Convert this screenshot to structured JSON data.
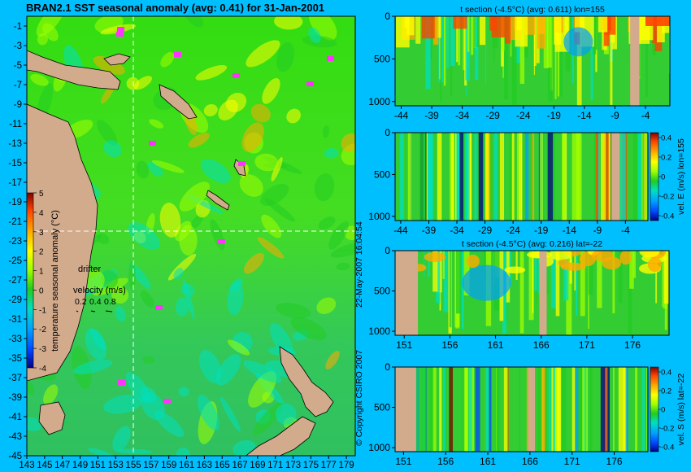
{
  "figure": {
    "title": "BRAN2.1 SST seasonal anomaly (avg: 0.41) for 31-Jan-2001",
    "copyright": "© Copyright CSIRO 2007",
    "timestamp": "22-May-2007 16:04:54"
  },
  "colors": {
    "background": "#00bfff",
    "land": "#d2aa8c",
    "drifter": "#ff33ff",
    "colormap": [
      "#000080",
      "#0044ff",
      "#00a0ff",
      "#00e0c0",
      "#22cc22",
      "#a0ff00",
      "#ffff00",
      "#ffaa00",
      "#ff4400",
      "#800000"
    ]
  },
  "chart_data": [
    {
      "id": "map",
      "type": "heatmap",
      "title": "BRAN2.1 SST seasonal anomaly (avg: 0.41) for 31-Jan-2001",
      "x_ticks": [
        "143",
        "145",
        "147",
        "149",
        "151",
        "153",
        "155",
        "157",
        "159",
        "161",
        "163",
        "165",
        "167",
        "169",
        "171",
        "173",
        "175",
        "177",
        "179"
      ],
      "y_ticks": [
        "-1",
        "-3",
        "-5",
        "-7",
        "-9",
        "-11",
        "-13",
        "-15",
        "-17",
        "-19",
        "-21",
        "-23",
        "-25",
        "-27",
        "-29",
        "-31",
        "-33",
        "-35",
        "-37",
        "-39",
        "-41",
        "-43",
        "-45"
      ],
      "xlim": [
        143,
        180
      ],
      "ylim": [
        -45,
        0
      ],
      "section_lon": 155,
      "section_lat": -22,
      "colorbar": {
        "label": "temperature seasonal anomaly (°C)",
        "ticks": [
          "5",
          "4",
          "3",
          "2",
          "1",
          "0",
          "-1",
          "-2",
          "-3",
          "-4"
        ],
        "range": [
          -4,
          5
        ]
      },
      "drifter_label": "drifter",
      "velocity_legend": {
        "label": "velocity (m/s)",
        "values": [
          "0.2",
          "0.4",
          "0.8"
        ]
      }
    },
    {
      "id": "t-section-lon",
      "type": "heatmap",
      "title": "t section (-4.5°C) (avg: 0.611) lon=155",
      "x_ticks": [
        "-44",
        "-39",
        "-34",
        "-29",
        "-24",
        "-19",
        "-14",
        "-9",
        "-4"
      ],
      "y_ticks": [
        "0",
        "500",
        "1000"
      ],
      "xlim": [
        -45,
        0
      ],
      "ylim": [
        1050,
        0
      ]
    },
    {
      "id": "u-section-lon",
      "type": "heatmap",
      "title": "",
      "x_ticks": [
        "-44",
        "-39",
        "-34",
        "-29",
        "-24",
        "-19",
        "-14",
        "-9",
        "-4"
      ],
      "y_ticks": [
        "0",
        "500",
        "1000"
      ],
      "xlim": [
        -45,
        0
      ],
      "ylim": [
        1050,
        0
      ],
      "colorbar": {
        "label": "vel. E (m/s) lon=155",
        "ticks": [
          "0.4",
          "0.2",
          "0",
          "-0.2",
          "-0.4"
        ]
      }
    },
    {
      "id": "t-section-lat",
      "type": "heatmap",
      "title": "t section (-4.5°C) (avg: 0.216) lat=-22",
      "x_ticks": [
        "151",
        "156",
        "161",
        "166",
        "171",
        "176"
      ],
      "y_ticks": [
        "0",
        "500",
        "1000"
      ],
      "xlim": [
        150,
        180
      ],
      "ylim": [
        1050,
        0
      ]
    },
    {
      "id": "v-section-lat",
      "type": "heatmap",
      "title": "",
      "x_ticks": [
        "151",
        "156",
        "161",
        "166",
        "171",
        "176"
      ],
      "y_ticks": [
        "0",
        "500",
        "1000"
      ],
      "xlim": [
        150,
        180
      ],
      "ylim": [
        1050,
        0
      ],
      "colorbar": {
        "label": "vel. S (m/s) lat=-22",
        "ticks": [
          "0.4",
          "0.2",
          "0",
          "-0.2",
          "-0.4"
        ]
      }
    }
  ]
}
